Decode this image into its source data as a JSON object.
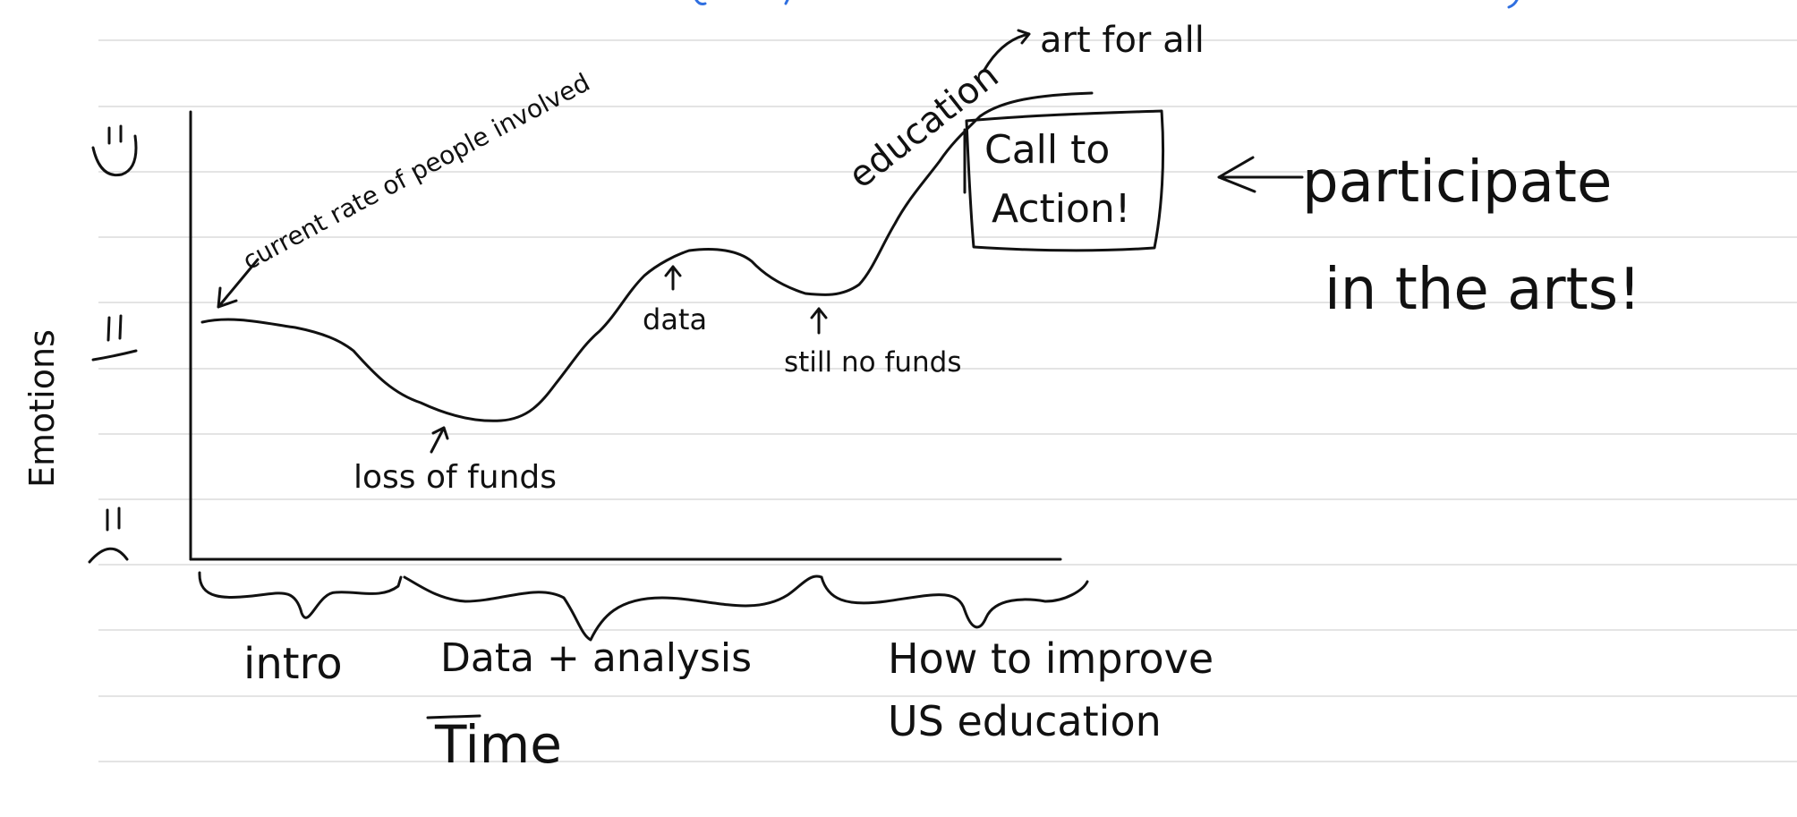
{
  "colors": {
    "ink": "#111111",
    "rule": "#dcdcdc",
    "accent_blue": "#2f6fe0"
  },
  "axes": {
    "y_label": "Emotions",
    "x_label": "Time"
  },
  "faces": {
    "happy": "smiley-face-icon",
    "neutral": "neutral-face-icon",
    "sad": "frowning-face-icon"
  },
  "annotations": {
    "start": "current rate of people involved",
    "dip": "loss of funds",
    "peak1": "data",
    "valley": "still no funds",
    "rise": "education",
    "top": "art for all",
    "cta": "Call to Action!",
    "cta_note": "participate in the arts!"
  },
  "sections": [
    "intro",
    "Data + analysis",
    "How to improve US education"
  ]
}
